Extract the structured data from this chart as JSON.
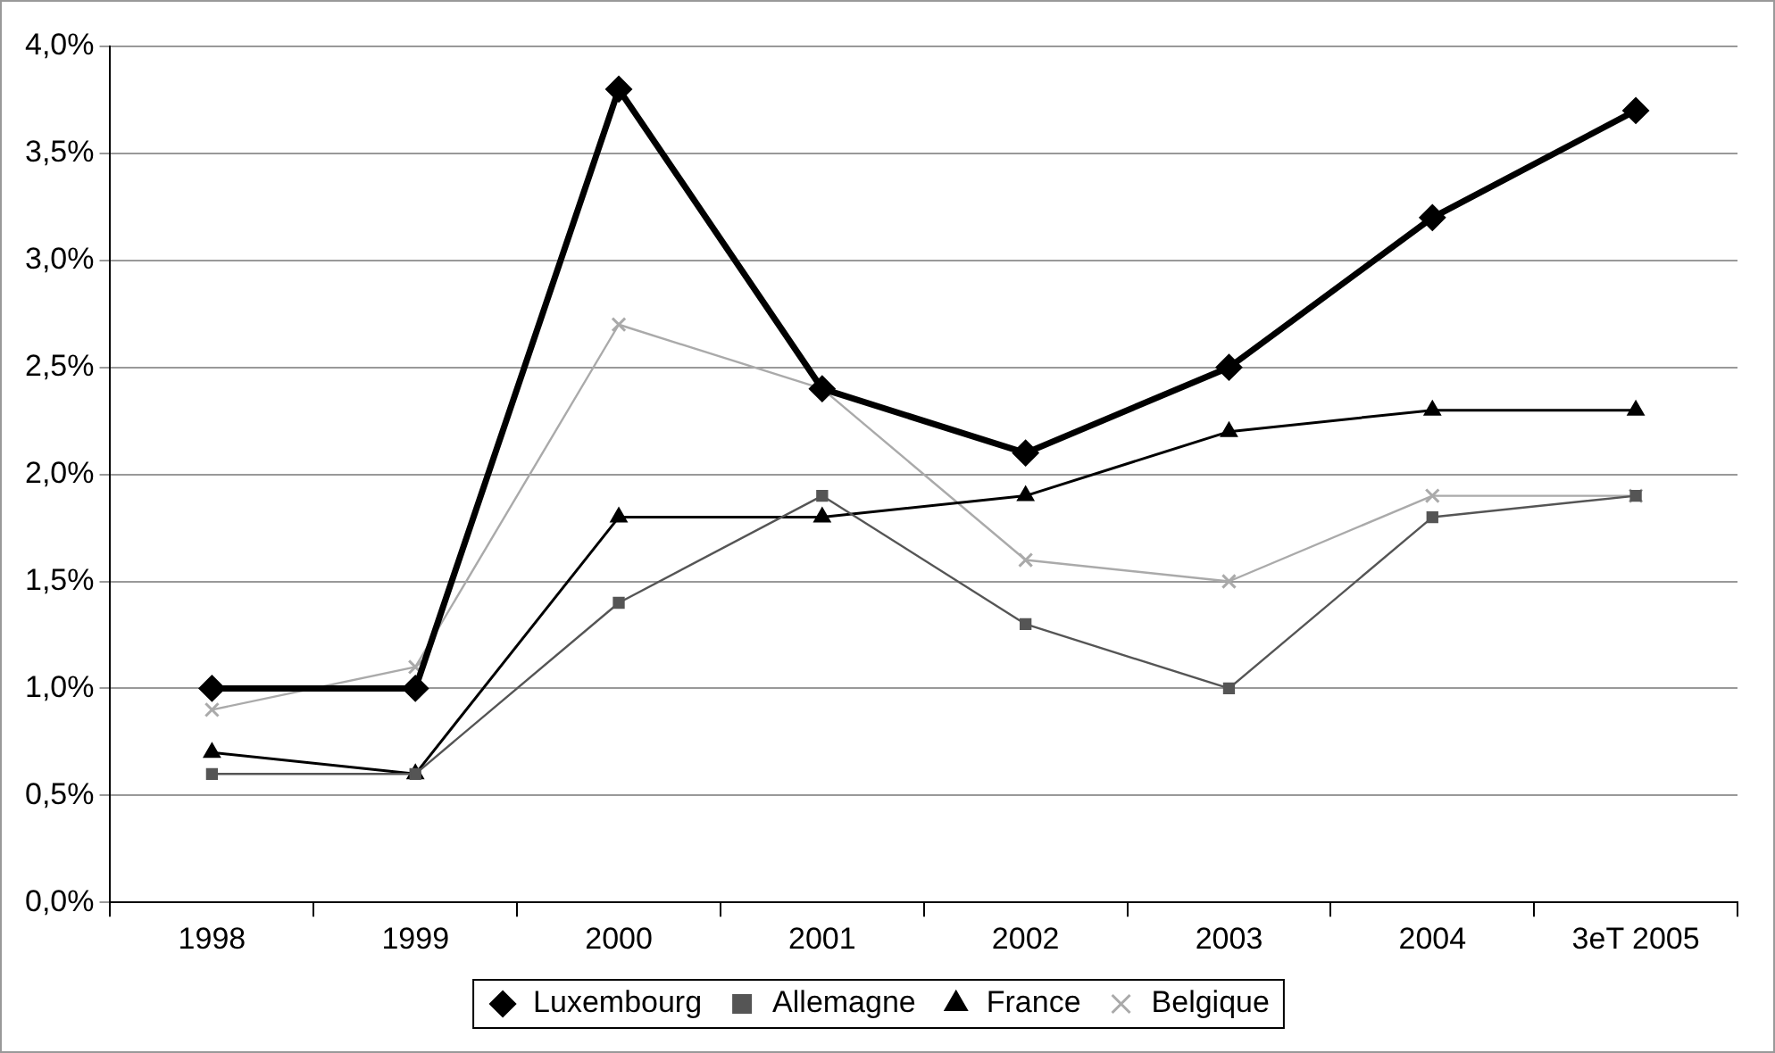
{
  "chart_data": {
    "type": "line",
    "categories": [
      "1998",
      "1999",
      "2000",
      "2001",
      "2002",
      "2003",
      "2004",
      "3eT 2005"
    ],
    "series": [
      {
        "name": "Luxembourg",
        "color": "#000000",
        "marker": "diamond",
        "values": [
          1.0,
          1.0,
          3.8,
          2.4,
          2.1,
          2.5,
          3.2,
          3.7
        ]
      },
      {
        "name": "Allemagne",
        "color": "#555555",
        "marker": "square",
        "values": [
          0.6,
          0.6,
          1.4,
          1.9,
          1.3,
          1.0,
          1.8,
          1.9
        ]
      },
      {
        "name": "France",
        "color": "#000000",
        "marker": "triangle",
        "values": [
          0.7,
          0.6,
          1.8,
          1.8,
          1.9,
          2.2,
          2.3,
          2.3
        ]
      },
      {
        "name": "Belgique",
        "color": "#aaaaaa",
        "marker": "cross",
        "values": [
          0.9,
          1.1,
          2.7,
          2.4,
          1.6,
          1.5,
          1.9,
          1.9
        ]
      }
    ],
    "ylim": [
      0,
      4
    ],
    "yticks": [
      {
        "value": 0,
        "label": "0,0%"
      },
      {
        "value": 0.5,
        "label": "0,5%"
      },
      {
        "value": 1,
        "label": "1,0%"
      },
      {
        "value": 1.5,
        "label": "1,5%"
      },
      {
        "value": 2,
        "label": "2,0%"
      },
      {
        "value": 2.5,
        "label": "2,5%"
      },
      {
        "value": 3,
        "label": "3,0%"
      },
      {
        "value": 3.5,
        "label": "3,5%"
      },
      {
        "value": 4,
        "label": "4,0%"
      }
    ],
    "grid": "y",
    "legend": "bottom",
    "line_style": "solid"
  }
}
